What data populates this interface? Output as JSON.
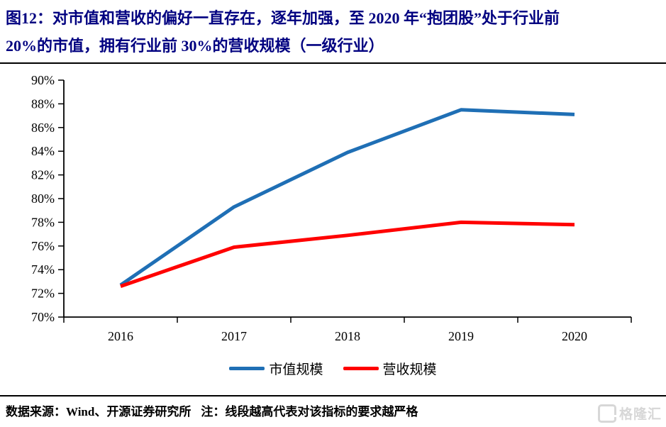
{
  "title": {
    "line1": "图12：对市值和营收的偏好一直存在，逐年加强，至 2020 年“抱团股”处于行业前",
    "line2": "20%的市值，拥有行业前 30%的营收规模（一级行业）",
    "color": "#000080"
  },
  "chart_data": {
    "type": "line",
    "categories": [
      "2016",
      "2017",
      "2018",
      "2019",
      "2020"
    ],
    "series": [
      {
        "name": "市值规模",
        "color": "#1F6FB5",
        "values": [
          72.7,
          79.3,
          83.9,
          87.5,
          87.1
        ]
      },
      {
        "name": "营收规模",
        "color": "#FF0000",
        "values": [
          72.6,
          75.9,
          76.9,
          78.0,
          77.8
        ]
      }
    ],
    "title": "",
    "xlabel": "",
    "ylabel": "",
    "ylim": [
      70,
      90
    ],
    "ytick_step": 2,
    "ytick_suffix": "%",
    "grid": false,
    "legend_position": "bottom",
    "axis_color": "#000000"
  },
  "footer": {
    "source_label": "数据来源：",
    "source": "Wind、开源证券研究所",
    "note": "注：线段越高代表对该指标的要求越严格"
  },
  "watermark": {
    "text": "格隆汇"
  }
}
